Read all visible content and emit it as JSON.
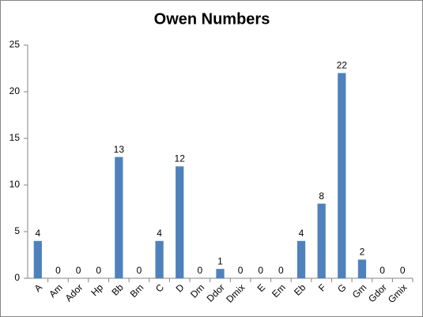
{
  "chart_data": {
    "type": "bar",
    "title": "Owen Numbers",
    "categories": [
      "A",
      "Am",
      "Ador",
      "Hp",
      "Bb",
      "Bm",
      "C",
      "D",
      "Dm",
      "Ddor",
      "Dmix",
      "E",
      "Em",
      "Eb",
      "F",
      "G",
      "Gm",
      "Gdor",
      "Gmix"
    ],
    "values": [
      4,
      0,
      0,
      0,
      13,
      0,
      4,
      12,
      0,
      1,
      0,
      0,
      0,
      4,
      8,
      22,
      2,
      0,
      0
    ],
    "color": "#4f81bd",
    "ylim": [
      0,
      25
    ],
    "yticks": [
      0,
      5,
      10,
      15,
      20,
      25
    ],
    "grid": false
  }
}
